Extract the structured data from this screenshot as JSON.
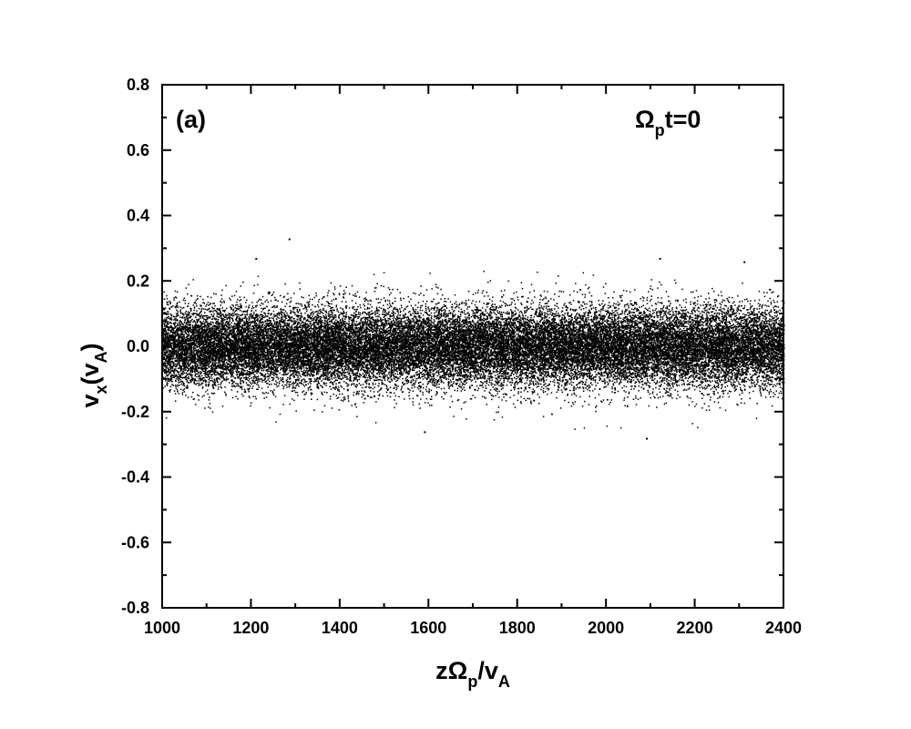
{
  "chart_data": {
    "type": "scatter",
    "panel_label": "(a)",
    "annotation": {
      "main": "Ω",
      "sub": "p",
      "tail": "t=0"
    },
    "xlabel": {
      "main": "zΩ",
      "sub": "p",
      "mid": "/v",
      "sub2": "A"
    },
    "ylabel": {
      "main": "v",
      "sub": "x",
      "mid": "(v",
      "sub2": "A",
      "tail": ")"
    },
    "xlim": [
      1000,
      2400
    ],
    "ylim": [
      -0.8,
      0.8
    ],
    "x_ticks": [
      1000,
      1200,
      1400,
      1600,
      1800,
      2000,
      2200,
      2400
    ],
    "x_tick_labels": [
      "1000",
      "1200",
      "1400",
      "1600",
      "1800",
      "2000",
      "2200",
      "2400"
    ],
    "y_ticks": [
      -0.8,
      -0.6,
      -0.4,
      -0.2,
      0.0,
      0.2,
      0.4,
      0.6,
      0.8
    ],
    "y_tick_labels": [
      "-0.8",
      "-0.6",
      "-0.4",
      "-0.2",
      "0.0",
      "0.2",
      "0.4",
      "0.6",
      "0.8"
    ],
    "grid": false,
    "marker_color": "#000000",
    "distribution": {
      "x_range": [
        1000,
        2400
      ],
      "mean": 0.0,
      "std_dev": 0.06,
      "approx_extent": [
        -0.28,
        0.33
      ]
    },
    "outliers": [
      {
        "x": 1285,
        "y": 0.33
      },
      {
        "x": 1210,
        "y": 0.27
      },
      {
        "x": 2120,
        "y": 0.27
      },
      {
        "x": 2090,
        "y": -0.28
      },
      {
        "x": 1590,
        "y": -0.26
      },
      {
        "x": 2310,
        "y": 0.26
      }
    ]
  }
}
